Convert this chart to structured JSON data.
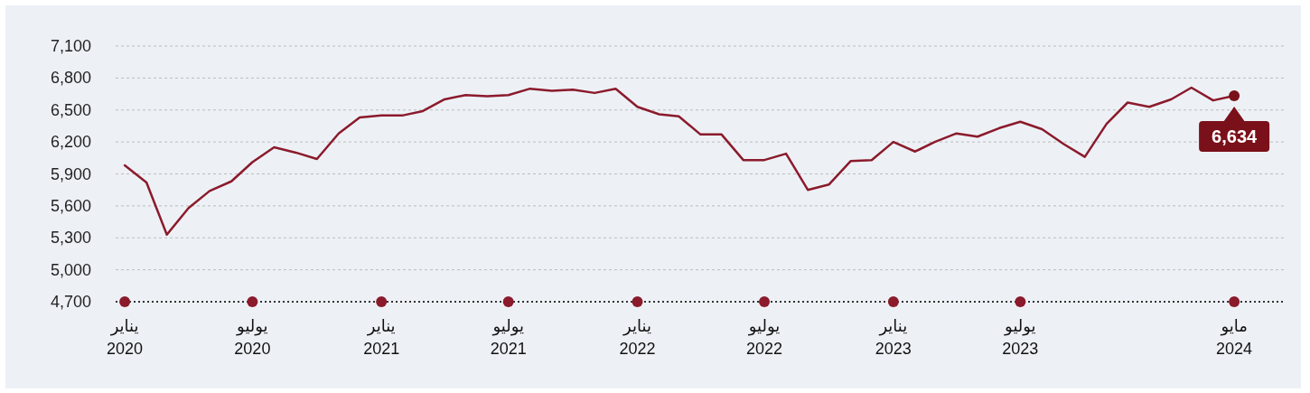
{
  "chart_data": {
    "type": "line",
    "x": [
      "2020-01",
      "2020-02",
      "2020-03",
      "2020-04",
      "2020-05",
      "2020-06",
      "2020-07",
      "2020-08",
      "2020-09",
      "2020-10",
      "2020-11",
      "2020-12",
      "2021-01",
      "2021-02",
      "2021-03",
      "2021-04",
      "2021-05",
      "2021-06",
      "2021-07",
      "2021-08",
      "2021-09",
      "2021-10",
      "2021-11",
      "2021-12",
      "2022-01",
      "2022-02",
      "2022-03",
      "2022-04",
      "2022-05",
      "2022-06",
      "2022-07",
      "2022-08",
      "2022-09",
      "2022-10",
      "2022-11",
      "2022-12",
      "2023-01",
      "2023-02",
      "2023-03",
      "2023-04",
      "2023-05",
      "2023-06",
      "2023-07",
      "2023-08",
      "2023-09",
      "2023-10",
      "2023-11",
      "2023-12",
      "2024-01",
      "2024-02",
      "2024-03",
      "2024-04",
      "2024-05"
    ],
    "series": [
      {
        "color": "#8b1a2b",
        "values": [
          5980,
          5820,
          5330,
          5580,
          5740,
          5830,
          6010,
          6150,
          6100,
          6040,
          6280,
          6430,
          6450,
          6450,
          6490,
          6600,
          6640,
          6630,
          6640,
          6700,
          6680,
          6690,
          6660,
          6700,
          6530,
          6460,
          6440,
          6270,
          6270,
          6030,
          6030,
          6090,
          5750,
          5800,
          6020,
          6030,
          6200,
          6110,
          6200,
          6280,
          6250,
          6330,
          6390,
          6320,
          6180,
          6060,
          6370,
          6570,
          6530,
          6600,
          6710,
          6590,
          6634
        ]
      }
    ],
    "xlim": [
      "2019-12-19",
      "2024-07-12"
    ],
    "xticks": [
      {
        "value": "2020-01",
        "label": "يناير\n2020"
      },
      {
        "value": "2020-07",
        "label": "يوليو\n2020"
      },
      {
        "value": "2021-01",
        "label": "يناير\n2021"
      },
      {
        "value": "2021-07",
        "label": "يوليو\n2021"
      },
      {
        "value": "2022-01",
        "label": "يناير\n2022"
      },
      {
        "value": "2022-07",
        "label": "يوليو\n2022"
      },
      {
        "value": "2023-01",
        "label": "يناير\n2023"
      },
      {
        "value": "2023-07",
        "label": "يوليو\n2023"
      },
      {
        "value": "2024-05",
        "label": "مايو\n2024"
      }
    ],
    "ylim": [
      4700,
      7100
    ],
    "yticks": [
      {
        "value": 4700,
        "label": "4,700"
      },
      {
        "value": 5000,
        "label": "5,000"
      },
      {
        "value": 5300,
        "label": "5,300"
      },
      {
        "value": 5600,
        "label": "5,600"
      },
      {
        "value": 5900,
        "label": "5,900"
      },
      {
        "value": 6200,
        "label": "6,200"
      },
      {
        "value": 6500,
        "label": "6,500"
      },
      {
        "value": 6800,
        "label": "6,800"
      },
      {
        "value": 7100,
        "label": "7,100"
      }
    ],
    "grid": "y",
    "marker": "none",
    "line_style": "solid",
    "annotations": [
      {
        "text": "6,634",
        "x": "2024-05",
        "y": 6634
      }
    ]
  }
}
